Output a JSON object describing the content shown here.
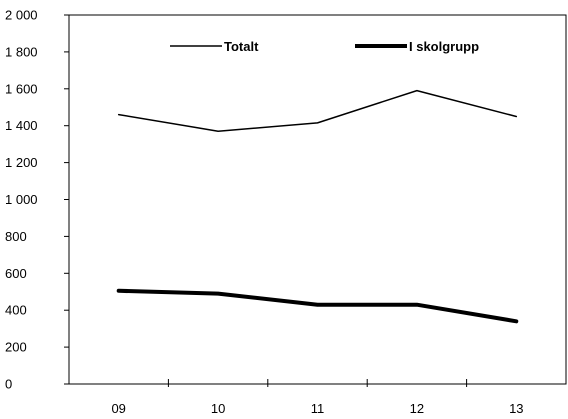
{
  "chart_data": {
    "type": "line",
    "categories": [
      "09",
      "10",
      "11",
      "12",
      "13"
    ],
    "series": [
      {
        "name": "Totalt",
        "values": [
          1460,
          1370,
          1415,
          1590,
          1450
        ],
        "color": "#000000",
        "weight": "thin"
      },
      {
        "name": "I skolgrupp",
        "values": [
          505,
          490,
          430,
          430,
          340
        ],
        "color": "#000000",
        "weight": "thick"
      }
    ],
    "y_ticks": [
      "0",
      "200",
      "400",
      "600",
      "800",
      "1 000",
      "1 200",
      "1 400",
      "1 600",
      "1 800",
      "2 000"
    ],
    "ylim": [
      0,
      2000
    ],
    "legend_position": "top",
    "grid": false,
    "title": "",
    "xlabel": "",
    "ylabel": ""
  }
}
